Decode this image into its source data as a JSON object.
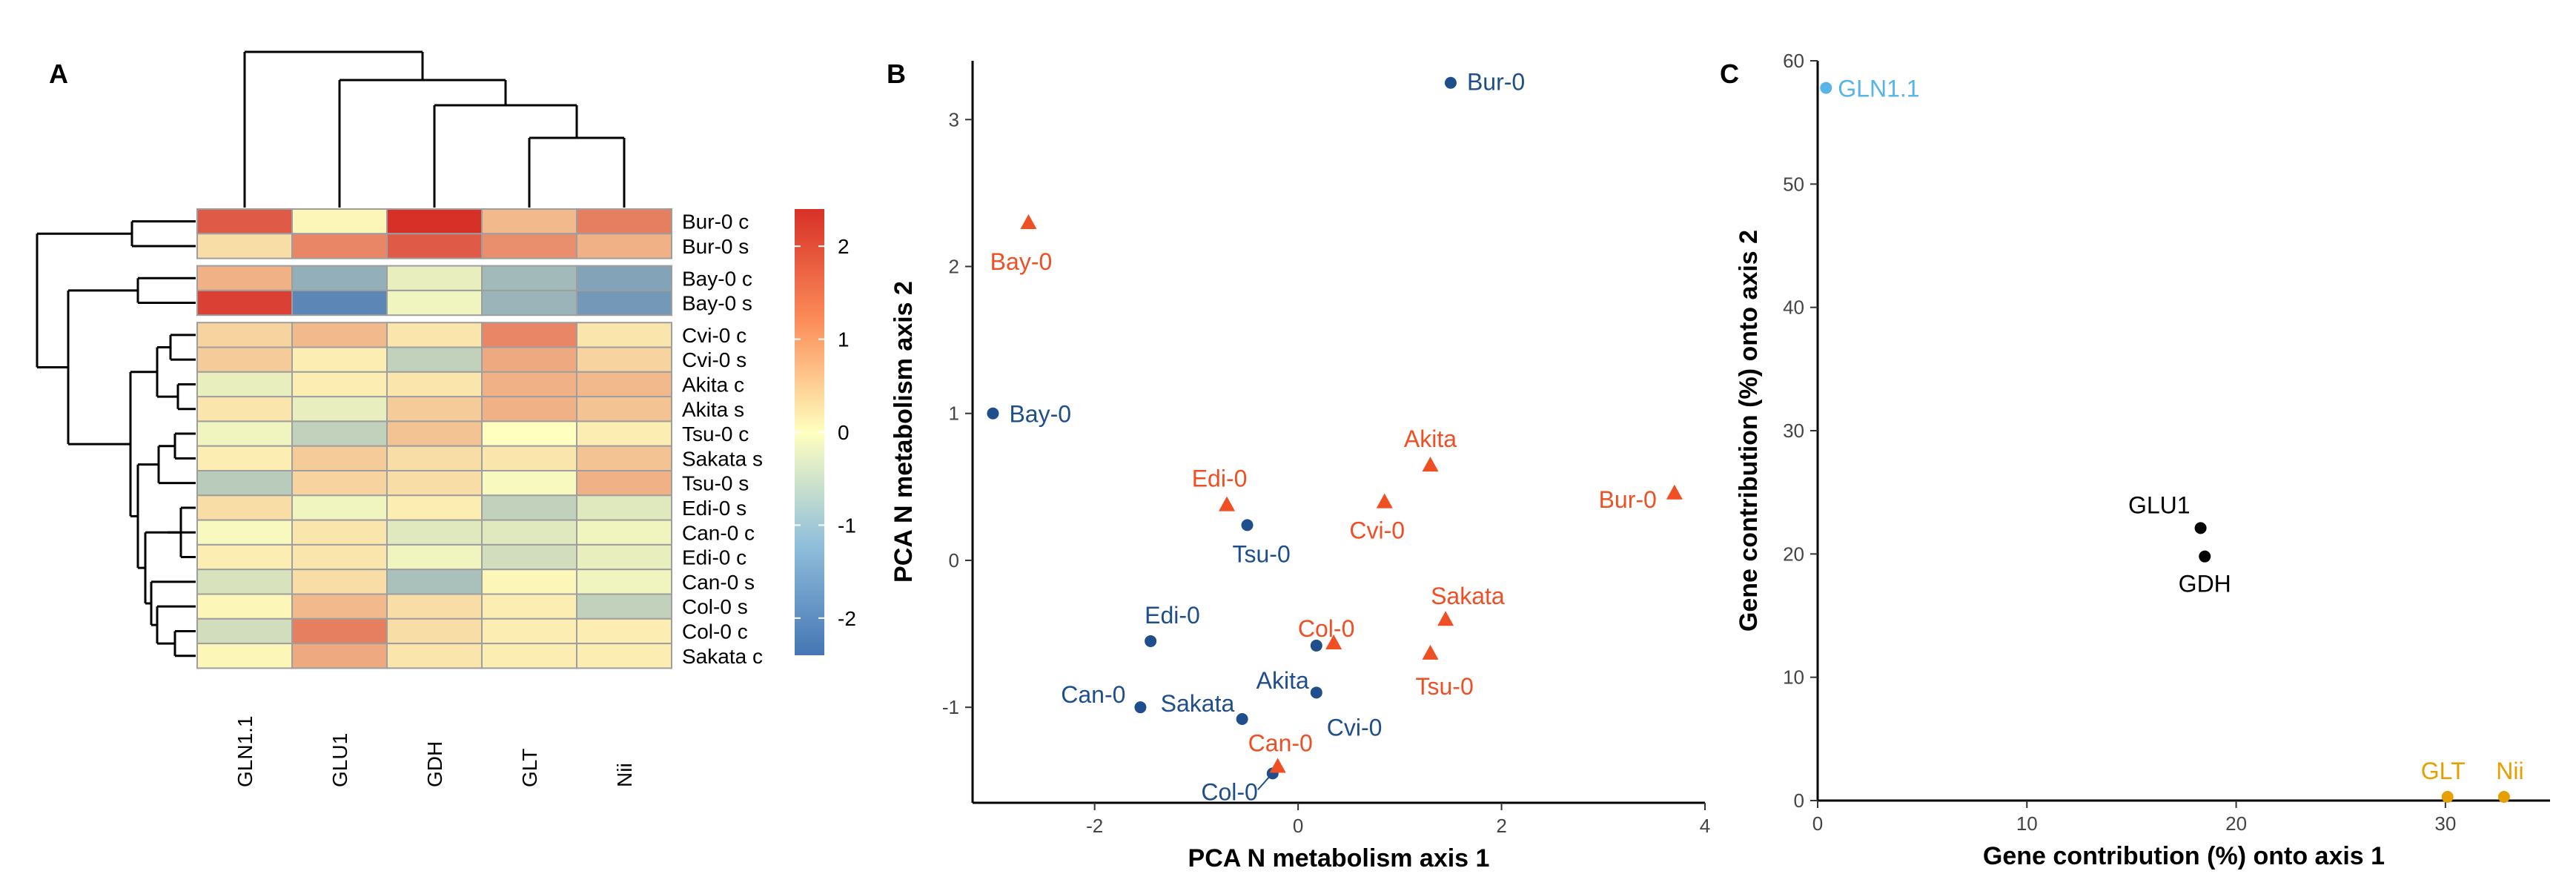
{
  "chart_data": [
    {
      "type": "heatmap",
      "panel": "A",
      "columns": [
        "GLN1.1",
        "GLU1",
        "GDH",
        "GLT",
        "Nii"
      ],
      "rows": [
        "Bur-0 c",
        "Bur-0 s",
        "Bay-0 c",
        "Bay-0 s",
        "Cvi-0 c",
        "Cvi-0 s",
        "Akita c",
        "Akita s",
        "Tsu-0 c",
        "Sakata s",
        "Tsu-0 s",
        "Edi-0 s",
        "Can-0 c",
        "Edi-0 c",
        "Can-0 s",
        "Col-0 s",
        "Col-0 c",
        "Sakata c"
      ],
      "values": [
        [
          1.9,
          0.1,
          2.4,
          0.8,
          1.5
        ],
        [
          0.4,
          1.4,
          1.9,
          1.3,
          0.9
        ],
        [
          0.9,
          -1.4,
          -0.3,
          -1.2,
          -1.6
        ],
        [
          2.2,
          -2.1,
          -0.2,
          -1.3,
          -1.8
        ],
        [
          0.5,
          0.8,
          0.3,
          1.4,
          0.3
        ],
        [
          0.6,
          0.2,
          -0.8,
          1.0,
          0.5
        ],
        [
          -0.3,
          0.2,
          0.3,
          0.9,
          0.8
        ],
        [
          0.3,
          -0.3,
          0.6,
          0.9,
          0.7
        ],
        [
          -0.2,
          -0.8,
          0.7,
          0.0,
          0.2
        ],
        [
          0.2,
          0.6,
          0.4,
          0.3,
          0.7
        ],
        [
          -0.9,
          0.5,
          0.4,
          -0.1,
          0.9
        ],
        [
          0.4,
          -0.2,
          0.2,
          -0.8,
          -0.4
        ],
        [
          -0.1,
          0.3,
          -0.4,
          -0.4,
          -0.2
        ],
        [
          0.2,
          0.3,
          -0.2,
          -0.6,
          -0.3
        ],
        [
          -0.5,
          0.4,
          -1.1,
          0.1,
          -0.2
        ],
        [
          0.1,
          0.8,
          0.4,
          0.2,
          -0.8
        ],
        [
          -0.6,
          1.5,
          0.4,
          0.2,
          0.2
        ],
        [
          0.1,
          1.0,
          0.3,
          0.2,
          0.2
        ]
      ],
      "legend": {
        "ticks": [
          "2",
          "1",
          "0",
          "-1",
          "-2"
        ],
        "min": -2.4,
        "max": 2.4
      },
      "colors": {
        "low": "#4575b4",
        "mid": "#ffffbf",
        "high": "#d73027"
      }
    },
    {
      "type": "scatter",
      "panel": "B",
      "xlabel": "PCA N metabolism axis 1",
      "ylabel": "PCA N metabolism axis 2",
      "xlim": [
        -3.2,
        4.0
      ],
      "ylim": [
        -1.65,
        3.4
      ],
      "xticks": [
        "-2",
        "0",
        "2",
        "4"
      ],
      "yticks": [
        "-1",
        "0",
        "1",
        "2",
        "3"
      ],
      "series": [
        {
          "color": "#1f4e8c",
          "marker": "circle",
          "points": [
            {
              "label": "Bur-0",
              "x": 1.5,
              "y": 3.25
            },
            {
              "label": "Bay-0",
              "x": -3.0,
              "y": 1.0
            },
            {
              "label": "Tsu-0",
              "x": -0.5,
              "y": 0.24
            },
            {
              "label": "Edi-0",
              "x": -1.45,
              "y": -0.55
            },
            {
              "label": "Akita",
              "x": 0.18,
              "y": -0.58
            },
            {
              "label": "Can-0",
              "x": -1.55,
              "y": -1.0
            },
            {
              "label": "Sakata",
              "x": -0.55,
              "y": -1.08
            },
            {
              "label": "Cvi-0",
              "x": 0.18,
              "y": -0.9
            },
            {
              "label": "Col-0",
              "x": -0.25,
              "y": -1.45
            }
          ]
        },
        {
          "color": "#f04e23",
          "marker": "triangle",
          "points": [
            {
              "label": "Bay-0",
              "x": -2.65,
              "y": 2.3
            },
            {
              "label": "Akita",
              "x": 1.3,
              "y": 0.65
            },
            {
              "label": "Bur-0",
              "x": 3.7,
              "y": 0.46
            },
            {
              "label": "Edi-0",
              "x": -0.7,
              "y": 0.38
            },
            {
              "label": "Cvi-0",
              "x": 0.85,
              "y": 0.4
            },
            {
              "label": "Sakata",
              "x": 1.45,
              "y": -0.4
            },
            {
              "label": "Col-0",
              "x": 0.35,
              "y": -0.56
            },
            {
              "label": "Tsu-0",
              "x": 1.3,
              "y": -0.63
            },
            {
              "label": "Can-0",
              "x": -0.2,
              "y": -1.4
            }
          ]
        }
      ]
    },
    {
      "type": "scatter",
      "panel": "C",
      "xlabel": "Gene contribution (%) onto axis 1",
      "ylabel": "Gene contribution (%) onto axis 2",
      "xlim": [
        0,
        35
      ],
      "ylim": [
        0,
        60
      ],
      "xticks": [
        "0",
        "10",
        "20",
        "30"
      ],
      "yticks": [
        "0",
        "10",
        "20",
        "30",
        "40",
        "50",
        "60"
      ],
      "points": [
        {
          "label": "GLN1.1",
          "x": 0.4,
          "y": 57.8,
          "color": "#56b4e9"
        },
        {
          "label": "GLU1",
          "x": 18.3,
          "y": 22.1,
          "color": "#000000"
        },
        {
          "label": "GDH",
          "x": 18.5,
          "y": 19.8,
          "color": "#000000"
        },
        {
          "label": "GLT",
          "x": 30.1,
          "y": 0.3,
          "color": "#e69f00"
        },
        {
          "label": "Nii",
          "x": 32.8,
          "y": 0.3,
          "color": "#e69f00"
        }
      ]
    }
  ]
}
